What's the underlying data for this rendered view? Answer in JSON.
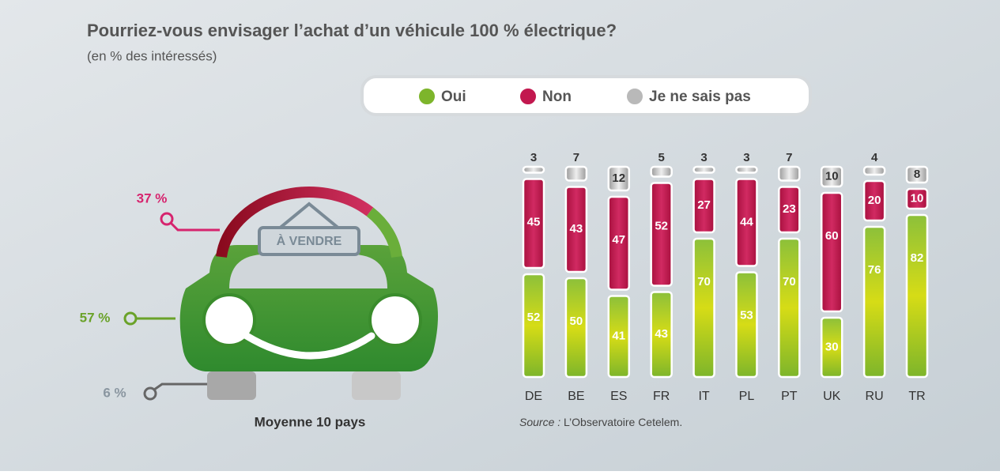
{
  "title": "Pourriez-vous envisager l’achat d’un véhicule 100 % électrique?",
  "subtitle": "(en % des intéressés)",
  "average": {
    "label": "Moyenne 10 pays",
    "sign": "À VENDRE",
    "names": [
      "Oui",
      "Non",
      "Je ne sais pas"
    ],
    "values": [
      57,
      37,
      6
    ],
    "value_labels": [
      "57 %",
      "37 %",
      "6 %"
    ]
  },
  "chart_data": {
    "type": "bar",
    "stacked": true,
    "categories": [
      "DE",
      "BE",
      "ES",
      "FR",
      "IT",
      "PL",
      "PT",
      "UK",
      "RU",
      "TR"
    ],
    "series": [
      {
        "name": "Oui",
        "color": "#7db52b",
        "values": [
          52,
          50,
          41,
          43,
          70,
          53,
          70,
          30,
          76,
          82
        ]
      },
      {
        "name": "Non",
        "color": "#c2184f",
        "values": [
          45,
          43,
          47,
          52,
          27,
          44,
          23,
          60,
          20,
          10
        ]
      },
      {
        "name": "Je ne sais pas",
        "color": "#b9b9b9",
        "values": [
          3,
          7,
          12,
          5,
          3,
          3,
          7,
          10,
          4,
          8
        ]
      }
    ],
    "legend": "top"
  },
  "source": {
    "label": "Source :",
    "text": "L’Observatoire Cetelem."
  }
}
